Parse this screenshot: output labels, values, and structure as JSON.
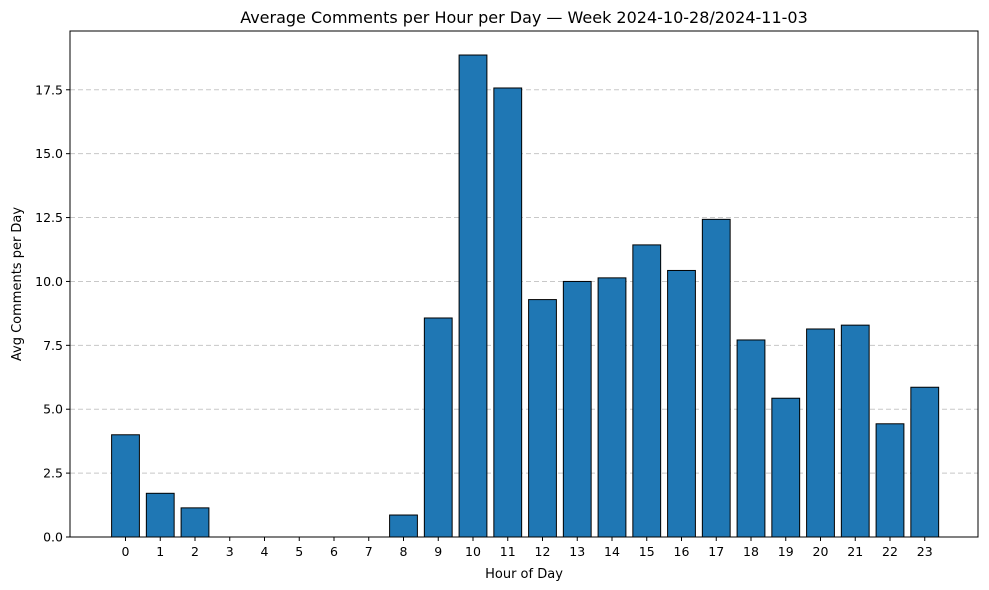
{
  "chart_data": {
    "type": "bar",
    "title": "Average Comments per Hour per Day — Week 2024-10-28/2024-11-03",
    "xlabel": "Hour of Day",
    "ylabel": "Avg Comments per Day",
    "categories": [
      "0",
      "1",
      "2",
      "3",
      "4",
      "5",
      "6",
      "7",
      "8",
      "9",
      "10",
      "11",
      "12",
      "13",
      "14",
      "15",
      "16",
      "17",
      "18",
      "19",
      "20",
      "21",
      "22",
      "23"
    ],
    "values": [
      4.0,
      1.71,
      1.14,
      0,
      0,
      0,
      0,
      0,
      0.86,
      8.57,
      18.86,
      17.57,
      9.29,
      10.0,
      10.14,
      11.43,
      10.43,
      12.43,
      7.71,
      5.43,
      8.14,
      8.29,
      4.43,
      5.86
    ],
    "ylim": [
      0,
      19.8
    ],
    "yticks": [
      "0.0",
      "2.5",
      "5.0",
      "7.5",
      "10.0",
      "12.5",
      "15.0",
      "17.5"
    ],
    "grid": "y-dashed",
    "bar_color": "#1f77b4",
    "edge_color": "#000000",
    "grid_color": "#c8c8c8"
  }
}
